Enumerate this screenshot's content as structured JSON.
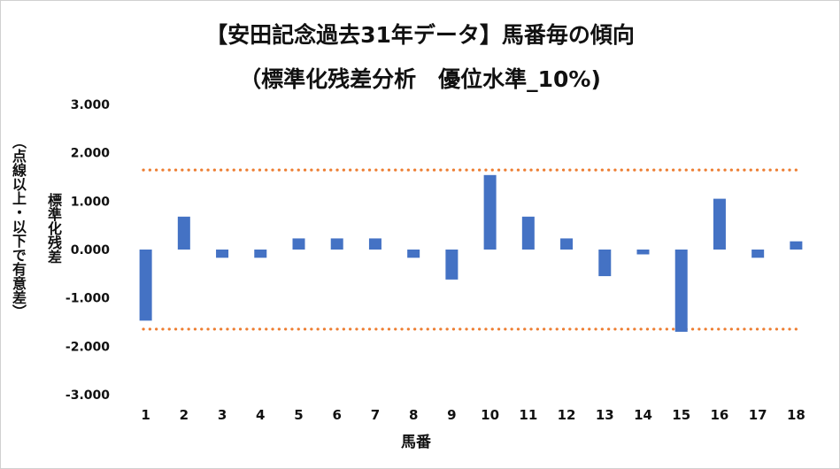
{
  "chart_data": {
    "type": "bar",
    "title": "【安田記念過去31年データ】馬番毎の傾向",
    "subtitle": "（標準化残差分析　優位水準_10%)",
    "xlabel": "馬番",
    "ylabel": "標準化残差",
    "ylabel_note": "（点線以上・以下で有意差）",
    "categories": [
      "1",
      "2",
      "3",
      "4",
      "5",
      "6",
      "7",
      "8",
      "9",
      "10",
      "11",
      "12",
      "13",
      "14",
      "15",
      "16",
      "17",
      "18"
    ],
    "values": [
      -1.47,
      0.68,
      -0.17,
      -0.17,
      0.23,
      0.23,
      0.23,
      -0.17,
      -0.62,
      1.54,
      0.68,
      0.23,
      -0.55,
      -0.1,
      -1.7,
      1.05,
      -0.17,
      0.17
    ],
    "ylim": [
      -3,
      3
    ],
    "yticks": [
      "3.000",
      "2.000",
      "1.000",
      "0.000",
      "-1.000",
      "-2.000",
      "-3.000"
    ],
    "ytick_values": [
      3,
      2,
      1,
      0,
      -1,
      -2,
      -3
    ],
    "threshold_upper": 1.645,
    "threshold_lower": -1.645,
    "bar_color": "#4472c4",
    "threshold_color": "#ed7d31",
    "grid": false,
    "legend": "none"
  }
}
